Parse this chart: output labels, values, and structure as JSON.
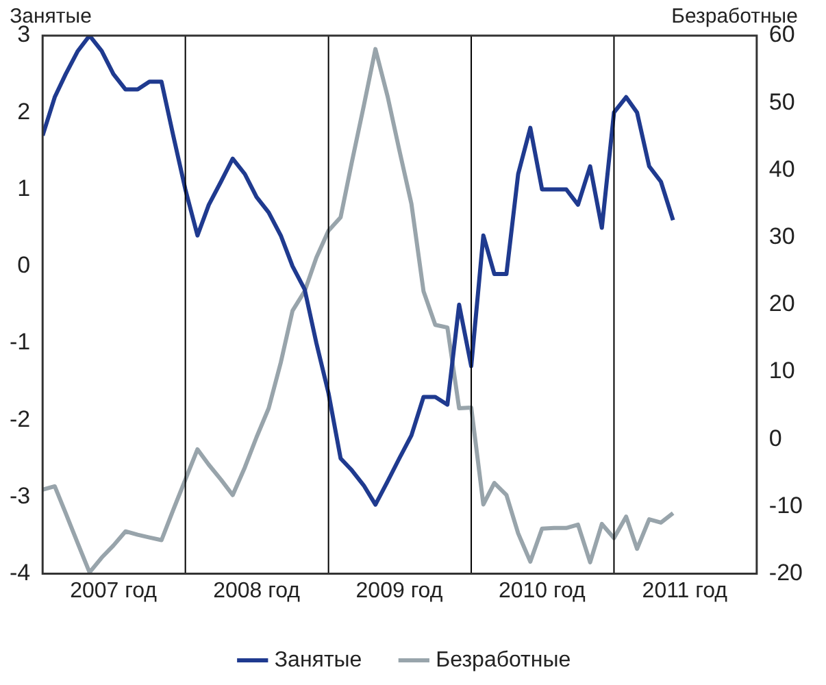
{
  "chart_data": {
    "type": "line",
    "ylabel": "Занятые",
    "y2label": "Безработные",
    "x": [
      "2007-01",
      "2007-02",
      "2007-03",
      "2007-04",
      "2007-05",
      "2007-06",
      "2007-07",
      "2007-08",
      "2007-09",
      "2007-10",
      "2007-11",
      "2007-12",
      "2008-01",
      "2008-02",
      "2008-03",
      "2008-04",
      "2008-05",
      "2008-06",
      "2008-07",
      "2008-08",
      "2008-09",
      "2008-10",
      "2008-11",
      "2008-12",
      "2009-01",
      "2009-02",
      "2009-03",
      "2009-04",
      "2009-05",
      "2009-06",
      "2009-07",
      "2009-08",
      "2009-09",
      "2009-10",
      "2009-11",
      "2009-12",
      "2010-01",
      "2010-02",
      "2010-03",
      "2010-04",
      "2010-05",
      "2010-06",
      "2010-07",
      "2010-08",
      "2010-09",
      "2010-10",
      "2010-11",
      "2010-12",
      "2011-01",
      "2011-02",
      "2011-03",
      "2011-04",
      "2011-05",
      "2011-06"
    ],
    "series": [
      {
        "name": "Занятые",
        "color": "#1f3a8f",
        "values": [
          1.7,
          2.2,
          2.5,
          2.8,
          3.0,
          2.8,
          2.5,
          2.3,
          2.3,
          2.4,
          2.4,
          1.7,
          1.0,
          0.4,
          0.8,
          1.1,
          1.4,
          1.2,
          0.9,
          0.7,
          0.4,
          0.0,
          -0.3,
          -1.0,
          -1.65,
          -2.5,
          -2.65,
          -2.85,
          -3.1,
          -2.8,
          -2.5,
          -2.2,
          -1.7,
          -1.7,
          -1.8,
          -0.5,
          -1.3,
          0.4,
          -0.1,
          -0.1,
          1.2,
          1.8,
          1.0,
          1.0,
          1.0,
          0.8,
          1.3,
          0.5,
          2.0,
          2.2,
          2.0,
          1.3,
          1.1,
          0.6
        ]
      },
      {
        "name": "Безработные",
        "color": "#98a4ab",
        "axis": "y2",
        "values": [
          -7.5,
          -7.0,
          -11,
          -15.5,
          -19.8,
          -17.6,
          -15.8,
          -13.7,
          -14.2,
          -14.6,
          -15.0,
          -10.5,
          -6,
          -1.5,
          -3.8,
          -6.0,
          -8.3,
          -4.2,
          0.3,
          4.6,
          11.4,
          19.1,
          22,
          27,
          31,
          33,
          41,
          49.5,
          58,
          51,
          43,
          35,
          22,
          17,
          16.6,
          4.6,
          4.7,
          -9.7,
          -6.5,
          -8.3,
          -14,
          -18.2,
          -13.3,
          -13.2,
          -13.2,
          -12.7,
          -18.3,
          -12.6,
          -14.7,
          -11.5,
          -16.3,
          -11.9,
          -12.4,
          -11
        ]
      }
    ],
    "xlim": [
      "2007-01",
      "2012-01"
    ],
    "xticks": [
      {
        "value": "2007-07",
        "label": "2007 год"
      },
      {
        "value": "2008-07",
        "label": "2008 год"
      },
      {
        "value": "2009-07",
        "label": "2009 год"
      },
      {
        "value": "2010-07",
        "label": "2010 год"
      },
      {
        "value": "2011-07",
        "label": "2011 год"
      }
    ],
    "ylim": [
      -4,
      3
    ],
    "yticks": [
      -4,
      -3,
      -2,
      -1,
      0,
      1,
      2,
      3
    ],
    "y2lim": [
      -20,
      60
    ],
    "y2ticks": [
      -20,
      -10,
      0,
      10,
      20,
      30,
      40,
      50,
      60
    ],
    "ref_lines": [
      {
        "axis": "x",
        "value": "2008-01",
        "color": "#000000"
      },
      {
        "axis": "x",
        "value": "2009-01",
        "color": "#000000"
      },
      {
        "axis": "x",
        "value": "2010-01",
        "color": "#000000"
      },
      {
        "axis": "x",
        "value": "2011-01",
        "color": "#000000"
      }
    ],
    "grid": false,
    "legend": "bottom",
    "marker": "none",
    "line_style": "solid"
  }
}
